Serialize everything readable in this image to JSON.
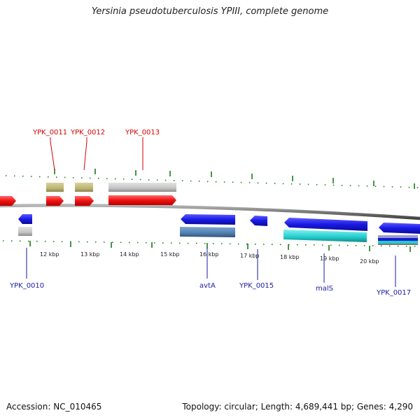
{
  "title": "Yersinia pseudotuberculosis YPIII, complete genome",
  "footer": {
    "accession": "Accession: NC_010465",
    "summary": "Topology: circular; Length: 4,689,441 bp; Genes: 4,290"
  },
  "colors": {
    "forward_gene": "#ee1111",
    "reverse_gene": "#1a1ae6",
    "backbone": "#808080",
    "tick": "#1a7a1a",
    "top_label": "#d40000",
    "bottom_label": "#1a1aa6"
  },
  "kbp_labels": [
    "12 kbp",
    "13 kbp",
    "14 kbp",
    "15 kbp",
    "16 kbp",
    "17 kbp",
    "18 kbp",
    "19 kbp",
    "20 kbp"
  ],
  "top_gene_labels": [
    "YPK_0011",
    "YPK_0012",
    "YPK_0013"
  ],
  "bottom_gene_labels": [
    "YPK_0010",
    "avtA",
    "YPK_0015",
    "malS",
    "YPK_0017"
  ]
}
